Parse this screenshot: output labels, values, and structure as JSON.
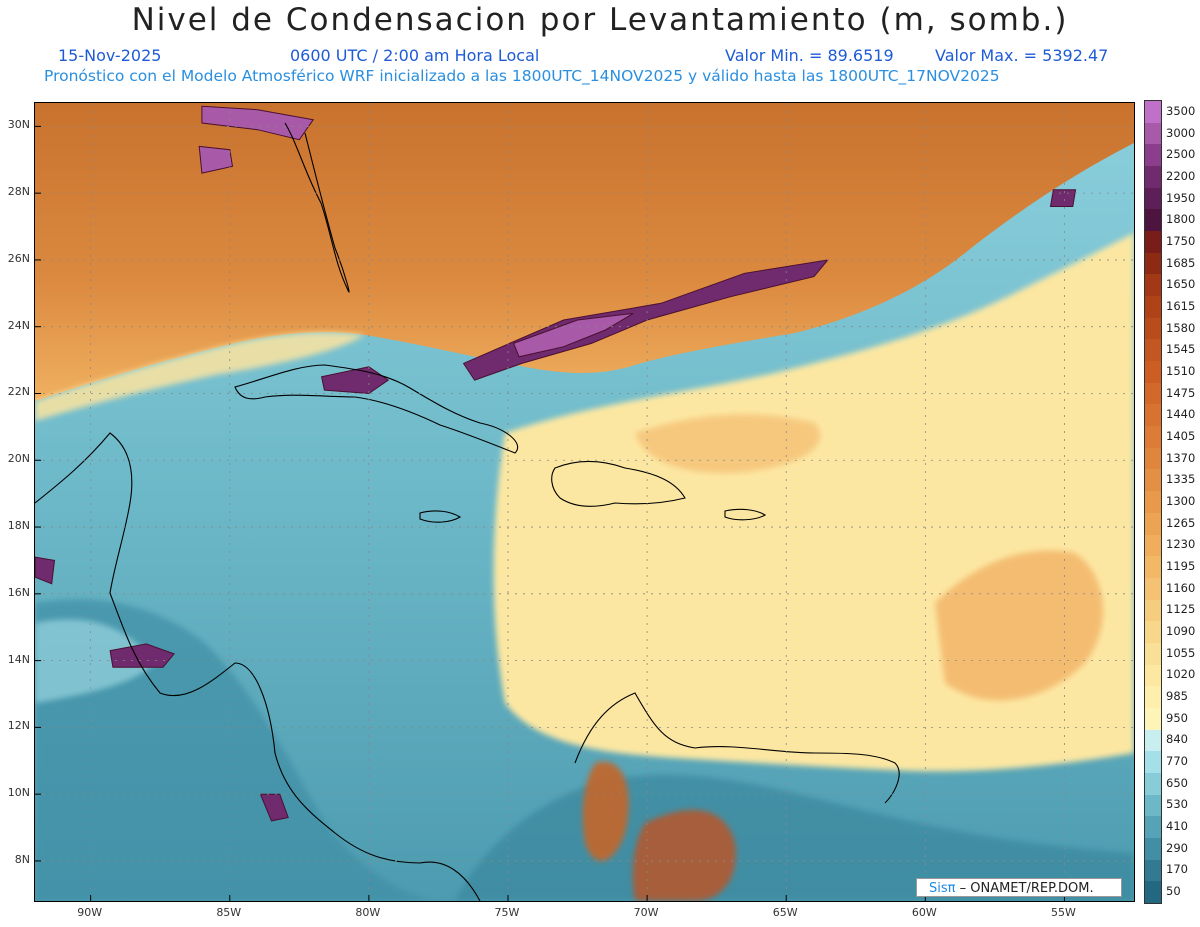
{
  "title": "Nivel de Condensacion por Levantamiento (m, somb.)",
  "date": "15-Nov-2025",
  "time": "0600 UTC / 2:00 am Hora Local",
  "min_label": "Valor Min. = 89.6519",
  "max_label": "Valor Max. = 5392.47",
  "forecast_line": "Pronóstico con el Modelo Atmosférico WRF inicializado a las 1800UTC_14NOV2025 y válido hasta las  1800UTC_17NOV2025",
  "credit": {
    "logo": "Sisπ",
    "text": "– ONAMET/REP.DOM."
  },
  "map": {
    "lon_range": [
      -92.0,
      -52.5
    ],
    "lat_range": [
      6.8,
      30.7
    ],
    "lon_ticks": [
      {
        "value": -90,
        "label": "90W"
      },
      {
        "value": -85,
        "label": "85W"
      },
      {
        "value": -80,
        "label": "80W"
      },
      {
        "value": -75,
        "label": "75W"
      },
      {
        "value": -70,
        "label": "70W"
      },
      {
        "value": -65,
        "label": "65W"
      },
      {
        "value": -60,
        "label": "60W"
      },
      {
        "value": -55,
        "label": "55W"
      }
    ],
    "lat_ticks": [
      {
        "value": 8,
        "label": "8N"
      },
      {
        "value": 10,
        "label": "10N"
      },
      {
        "value": 12,
        "label": "12N"
      },
      {
        "value": 14,
        "label": "14N"
      },
      {
        "value": 16,
        "label": "16N"
      },
      {
        "value": 18,
        "label": "18N"
      },
      {
        "value": 20,
        "label": "20N"
      },
      {
        "value": 22,
        "label": "22N"
      },
      {
        "value": 24,
        "label": "24N"
      },
      {
        "value": 26,
        "label": "26N"
      },
      {
        "value": 28,
        "label": "28N"
      },
      {
        "value": 30,
        "label": "30N"
      }
    ]
  },
  "colorbar": {
    "labels": [
      "3500",
      "3000",
      "2500",
      "2200",
      "1950",
      "1800",
      "1750",
      "1685",
      "1650",
      "1615",
      "1580",
      "1545",
      "1510",
      "1475",
      "1440",
      "1405",
      "1370",
      "1335",
      "1300",
      "1265",
      "1230",
      "1195",
      "1160",
      "1125",
      "1090",
      "1055",
      "1020",
      "985",
      "950",
      "840",
      "770",
      "650",
      "530",
      "410",
      "290",
      "170",
      "50"
    ],
    "colors": [
      "#c070c8",
      "#a85aa8",
      "#8a3e8c",
      "#702a6e",
      "#5e1e58",
      "#4e1440",
      "#7a1c1a",
      "#8e2a14",
      "#a23816",
      "#b04218",
      "#ba4c1c",
      "#c45622",
      "#cc5e24",
      "#d2682a",
      "#d87230",
      "#dc7c36",
      "#e0863c",
      "#e49044",
      "#e89a4a",
      "#eca452",
      "#f0ae5c",
      "#f2b866",
      "#f4c272",
      "#f6cc7e",
      "#f8d68a",
      "#fae096",
      "#fce8a0",
      "#fef0ac",
      "#fff4b8",
      "#c8eef0",
      "#a4e0e8",
      "#88ccd8",
      "#6cb8c8",
      "#56a2b6",
      "#428ea4",
      "#327a92",
      "#226880"
    ]
  },
  "regions": [
    {
      "name": "florida-purple",
      "level": "3000",
      "poly": [
        [
          -86,
          30.6
        ],
        [
          -84,
          30.5
        ],
        [
          -82,
          30.2
        ],
        [
          -82.5,
          29.6
        ],
        [
          -84,
          29.9
        ],
        [
          -86,
          30.1
        ]
      ]
    },
    {
      "name": "bahamas-band",
      "level": "2200",
      "poly": [
        [
          -76.6,
          22.9
        ],
        [
          -73,
          24.2
        ],
        [
          -69.5,
          24.7
        ],
        [
          -66.5,
          25.6
        ],
        [
          -63.5,
          26
        ],
        [
          -64,
          25.5
        ],
        [
          -67,
          24.9
        ],
        [
          -70,
          24.2
        ],
        [
          -72,
          23.5
        ],
        [
          -74.5,
          22.9
        ],
        [
          -76.2,
          22.4
        ]
      ]
    },
    {
      "name": "bahamas-band-core",
      "level": "3000",
      "poly": [
        [
          -74.8,
          23.5
        ],
        [
          -72.5,
          24.2
        ],
        [
          -70.5,
          24.4
        ],
        [
          -71.5,
          23.9
        ],
        [
          -73,
          23.4
        ],
        [
          -74.6,
          23.1
        ]
      ]
    },
    {
      "name": "cuba-purple",
      "level": "2200",
      "poly": [
        [
          -81.7,
          22.5
        ],
        [
          -80,
          22.8
        ],
        [
          -79.3,
          22.4
        ],
        [
          -80,
          22
        ],
        [
          -81.6,
          22.1
        ]
      ]
    },
    {
      "name": "honduras-purple",
      "level": "2200",
      "poly": [
        [
          -89.3,
          14.3
        ],
        [
          -88,
          14.5
        ],
        [
          -87,
          14.2
        ],
        [
          -87.4,
          13.8
        ],
        [
          -89.2,
          13.8
        ]
      ]
    },
    {
      "name": "costa-rica-purple",
      "level": "2200",
      "poly": [
        [
          -83.9,
          10
        ],
        [
          -83.2,
          10
        ],
        [
          -82.9,
          9.3
        ],
        [
          -83.5,
          9.2
        ]
      ]
    },
    {
      "name": "yucatan-purple",
      "level": "2200",
      "poly": [
        [
          -92,
          17.1
        ],
        [
          -91.3,
          17
        ],
        [
          -91.4,
          16.3
        ],
        [
          -92,
          16.5
        ]
      ]
    },
    {
      "name": "gulf-spot",
      "level": "3000",
      "poly": [
        [
          -86.1,
          29.4
        ],
        [
          -85,
          29.3
        ],
        [
          -84.9,
          28.8
        ],
        [
          -86,
          28.6
        ]
      ]
    },
    {
      "name": "atlantic-spot",
      "level": "2200",
      "poly": [
        [
          -55.4,
          28.1
        ],
        [
          -54.6,
          28.1
        ],
        [
          -54.7,
          27.6
        ],
        [
          -55.5,
          27.6
        ]
      ]
    }
  ]
}
